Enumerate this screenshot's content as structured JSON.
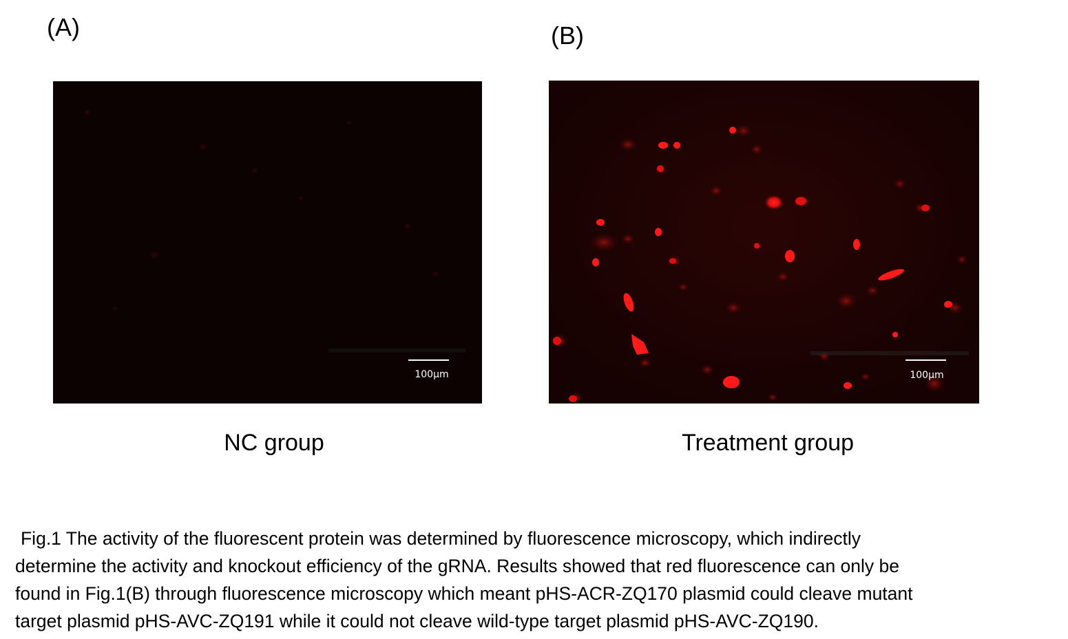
{
  "panels": [
    {
      "label": "(A)",
      "scale_bar_text": "100µm",
      "group_title": "NC group",
      "fill_color": "#0d0202"
    },
    {
      "label": "(B)",
      "scale_bar_text": "100µm",
      "group_title": "Treatment group",
      "fill_color": "#1a0303",
      "cell_color": "#ff1a1a"
    }
  ],
  "caption": {
    "lines": [
      "Fig.1 The activity of the fluorescent protein was determined by fluorescence microscopy, which indirectly",
      "determine the activity and knockout efficiency of the gRNA. Results showed that red fluorescence can only be",
      "found in Fig.1(B) through fluorescence microscopy which meant pHS-ACR-ZQ170 plasmid could cleave mutant",
      "target plasmid pHS-AVC-ZQ191 while it could not cleave wild-type target plasmid pHS-AVC-ZQ190."
    ]
  }
}
